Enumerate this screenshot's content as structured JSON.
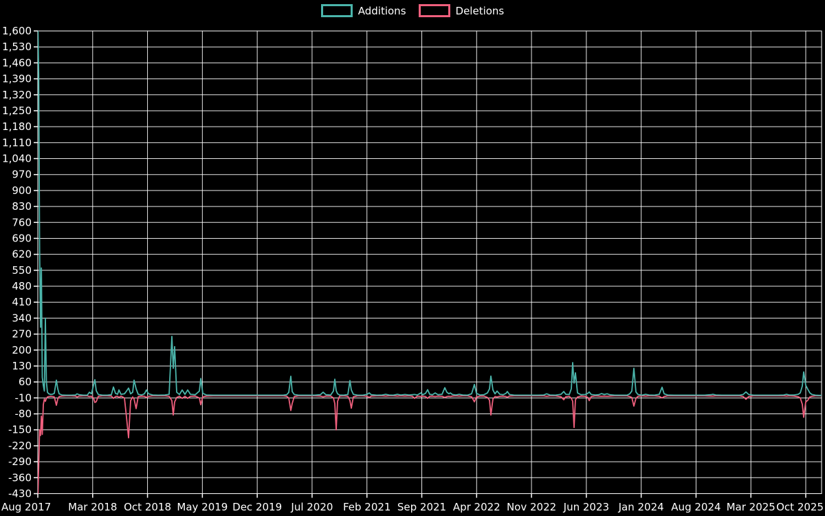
{
  "legend": {
    "additions_label": "Additions",
    "deletions_label": "Deletions"
  },
  "colors": {
    "additions": "#4bb5ab",
    "deletions": "#ef5f7d",
    "grid": "#ffffff",
    "background": "#000000",
    "text": "#ffffff"
  },
  "chart_data": {
    "type": "line",
    "title": "",
    "xlabel": "",
    "ylabel": "",
    "grid": "on",
    "legend_position": "top-center",
    "x_domain": [
      "Aug 2017",
      "Oct 2025"
    ],
    "x_tick_labels": [
      "Aug 2017",
      "Mar 2018",
      "Oct 2018",
      "May 2019",
      "Dec 2019",
      "Jul 2020",
      "Feb 2021",
      "Sep 2021",
      "Apr 2022",
      "Nov 2022",
      "Jun 2023",
      "Jan 2024",
      "Aug 2024",
      "Mar 2025",
      "Oct 2025"
    ],
    "y_tick_labels": [
      "1,600",
      "1,530",
      "1,460",
      "1,390",
      "1,320",
      "1,250",
      "1,180",
      "1,110",
      "1,040",
      "970",
      "900",
      "830",
      "760",
      "690",
      "620",
      "550",
      "480",
      "410",
      "340",
      "270",
      "200",
      "130",
      "60",
      "-10",
      "-80",
      "-150",
      "-220",
      "-290",
      "-360",
      "-430"
    ],
    "ylim": [
      -430,
      1600
    ],
    "y_step": 70,
    "series_names": [
      "Additions",
      "Deletions"
    ],
    "points_format": "[x_pixel_along_time_axis(55=Aug 2017 .. 1195=end), additions(+), deletions(-)]; flat ~0 between listed anchors",
    "points": [
      [
        55,
        1650,
        -460
      ],
      [
        56.3,
        1410,
        -310
      ],
      [
        57.6,
        640,
        -150
      ],
      [
        58.9,
        300,
        -175
      ],
      [
        60.2,
        560,
        -90
      ],
      [
        61.5,
        80,
        -170
      ],
      [
        63,
        45,
        -40
      ],
      [
        64.5,
        20,
        -15
      ],
      [
        66,
        340,
        -25
      ],
      [
        67.5,
        60,
        -12
      ],
      [
        69,
        15,
        -6
      ],
      [
        71,
        8,
        -4
      ],
      [
        74,
        5,
        -3
      ],
      [
        77,
        7,
        -4
      ],
      [
        79,
        10,
        -6
      ],
      [
        82,
        68,
        -42
      ],
      [
        84,
        30,
        -15
      ],
      [
        86,
        8,
        -4
      ],
      [
        90,
        3,
        -2
      ],
      [
        96,
        2,
        -1
      ],
      [
        104,
        2,
        -1
      ],
      [
        110,
        3,
        -2
      ],
      [
        112,
        8,
        -6
      ],
      [
        115,
        4,
        -2
      ],
      [
        121,
        2,
        -1
      ],
      [
        127,
        2,
        -1
      ],
      [
        130,
        15,
        -4
      ],
      [
        133,
        8,
        -3
      ],
      [
        136,
        45,
        -10
      ],
      [
        138,
        70,
        -30
      ],
      [
        140,
        22,
        -26
      ],
      [
        143,
        5,
        -3
      ],
      [
        149,
        2,
        -1
      ],
      [
        156,
        2,
        -1
      ],
      [
        162,
        4,
        -2
      ],
      [
        165,
        38,
        -12
      ],
      [
        168,
        10,
        -4
      ],
      [
        171,
        6,
        -3
      ],
      [
        173,
        25,
        -8
      ],
      [
        176,
        6,
        -2
      ],
      [
        181,
        8,
        -10
      ],
      [
        184,
        20,
        -95
      ],
      [
        187,
        33,
        -185
      ],
      [
        190,
        8,
        -22
      ],
      [
        193,
        15,
        -6
      ],
      [
        195,
        68,
        -15
      ],
      [
        198,
        30,
        -57
      ],
      [
        201,
        6,
        -4
      ],
      [
        206,
        3,
        -2
      ],
      [
        210,
        8,
        -3
      ],
      [
        213,
        25,
        -8
      ],
      [
        216,
        8,
        -3
      ],
      [
        222,
        3,
        -1
      ],
      [
        230,
        2,
        -1
      ],
      [
        240,
        3,
        -1
      ],
      [
        246,
        6,
        -3
      ],
      [
        250,
        260,
        -22
      ],
      [
        252,
        120,
        -85
      ],
      [
        254,
        215,
        -28
      ],
      [
        257,
        15,
        -8
      ],
      [
        261,
        5,
        -3
      ],
      [
        265,
        25,
        -12
      ],
      [
        269,
        6,
        -3
      ],
      [
        273,
        25,
        -12
      ],
      [
        277,
        6,
        -3
      ],
      [
        284,
        4,
        -2
      ],
      [
        290,
        20,
        -10
      ],
      [
        292,
        75,
        -40
      ],
      [
        295,
        10,
        -5
      ],
      [
        300,
        3,
        -2
      ],
      [
        310,
        2,
        -1
      ],
      [
        325,
        2,
        -1
      ],
      [
        340,
        2,
        -1
      ],
      [
        355,
        2,
        -1
      ],
      [
        370,
        2,
        -1
      ],
      [
        385,
        2,
        -1
      ],
      [
        400,
        2,
        -1
      ],
      [
        412,
        2,
        -1
      ],
      [
        417,
        4,
        -3
      ],
      [
        420,
        14,
        -10
      ],
      [
        423,
        85,
        -65
      ],
      [
        425,
        18,
        -35
      ],
      [
        428,
        5,
        -4
      ],
      [
        434,
        2,
        -1
      ],
      [
        445,
        2,
        -1
      ],
      [
        458,
        2,
        -1
      ],
      [
        466,
        4,
        -2
      ],
      [
        470,
        15,
        -5
      ],
      [
        474,
        4,
        -2
      ],
      [
        481,
        3,
        -2
      ],
      [
        485,
        20,
        -10
      ],
      [
        487,
        72,
        -35
      ],
      [
        489,
        22,
        -150
      ],
      [
        491,
        8,
        -25
      ],
      [
        494,
        3,
        -2
      ],
      [
        500,
        2,
        -1
      ],
      [
        506,
        5,
        -3
      ],
      [
        509,
        66,
        -22
      ],
      [
        511,
        25,
        -55
      ],
      [
        514,
        6,
        -5
      ],
      [
        520,
        2,
        -1
      ],
      [
        528,
        2,
        -1
      ],
      [
        534,
        6,
        -3
      ],
      [
        537,
        12,
        -8
      ],
      [
        540,
        4,
        -2
      ],
      [
        548,
        2,
        -1
      ],
      [
        556,
        3,
        -1
      ],
      [
        561,
        6,
        -2
      ],
      [
        566,
        3,
        -1
      ],
      [
        572,
        2,
        -1
      ],
      [
        578,
        6,
        -2
      ],
      [
        583,
        3,
        -1
      ],
      [
        589,
        5,
        -2
      ],
      [
        595,
        3,
        -1
      ],
      [
        600,
        4,
        -3
      ],
      [
        603,
        5,
        -12
      ],
      [
        607,
        3,
        -2
      ],
      [
        610,
        8,
        -3
      ],
      [
        612,
        12,
        -4
      ],
      [
        615,
        4,
        -2
      ],
      [
        619,
        10,
        -4
      ],
      [
        622,
        26,
        -12
      ],
      [
        625,
        6,
        -3
      ],
      [
        629,
        4,
        -2
      ],
      [
        633,
        12,
        -4
      ],
      [
        637,
        4,
        -2
      ],
      [
        643,
        6,
        -3
      ],
      [
        647,
        35,
        -8
      ],
      [
        650,
        15,
        -4
      ],
      [
        653,
        8,
        -3
      ],
      [
        655,
        12,
        -4
      ],
      [
        658,
        5,
        -2
      ],
      [
        663,
        3,
        -1
      ],
      [
        668,
        6,
        -2
      ],
      [
        673,
        3,
        -1
      ],
      [
        680,
        2,
        -1
      ],
      [
        686,
        8,
        -5
      ],
      [
        690,
        49,
        -27
      ],
      [
        693,
        10,
        -6
      ],
      [
        698,
        3,
        -2
      ],
      [
        704,
        4,
        -2
      ],
      [
        709,
        12,
        -8
      ],
      [
        712,
        30,
        -20
      ],
      [
        714,
        86,
        -85
      ],
      [
        717,
        25,
        -15
      ],
      [
        720,
        8,
        -4
      ],
      [
        723,
        20,
        -6
      ],
      [
        727,
        6,
        -3
      ],
      [
        732,
        4,
        -2
      ],
      [
        736,
        10,
        -4
      ],
      [
        738,
        18,
        -7
      ],
      [
        741,
        5,
        -2
      ],
      [
        748,
        2,
        -1
      ],
      [
        758,
        2,
        -1
      ],
      [
        770,
        2,
        -1
      ],
      [
        782,
        2,
        -1
      ],
      [
        791,
        3,
        -1
      ],
      [
        795,
        8,
        -3
      ],
      [
        800,
        3,
        -1
      ],
      [
        808,
        2,
        -1
      ],
      [
        816,
        6,
        -5
      ],
      [
        820,
        18,
        -18
      ],
      [
        823,
        6,
        -5
      ],
      [
        828,
        5,
        -3
      ],
      [
        831,
        30,
        -12
      ],
      [
        833,
        145,
        -25
      ],
      [
        835,
        55,
        -140
      ],
      [
        837,
        100,
        -18
      ],
      [
        840,
        12,
        -6
      ],
      [
        845,
        4,
        -2
      ],
      [
        851,
        5,
        -3
      ],
      [
        855,
        10,
        -8
      ],
      [
        857,
        16,
        -22
      ],
      [
        860,
        5,
        -4
      ],
      [
        866,
        3,
        -1
      ],
      [
        871,
        4,
        -2
      ],
      [
        875,
        9,
        -3
      ],
      [
        879,
        5,
        -2
      ],
      [
        883,
        8,
        -3
      ],
      [
        887,
        4,
        -2
      ],
      [
        894,
        2,
        -1
      ],
      [
        903,
        2,
        -1
      ],
      [
        912,
        2,
        -1
      ],
      [
        916,
        8,
        -4
      ],
      [
        919,
        20,
        -8
      ],
      [
        922,
        120,
        -46
      ],
      [
        925,
        16,
        -12
      ],
      [
        928,
        5,
        -3
      ],
      [
        934,
        2,
        -1
      ],
      [
        939,
        6,
        -2
      ],
      [
        944,
        3,
        -1
      ],
      [
        952,
        2,
        -1
      ],
      [
        959,
        6,
        -3
      ],
      [
        963,
        37,
        -10
      ],
      [
        966,
        8,
        -4
      ],
      [
        971,
        3,
        -1
      ],
      [
        980,
        2,
        -1
      ],
      [
        995,
        2,
        -1
      ],
      [
        1010,
        2,
        -1
      ],
      [
        1025,
        2,
        -1
      ],
      [
        1034,
        4,
        -2
      ],
      [
        1037,
        6,
        -2
      ],
      [
        1041,
        3,
        -1
      ],
      [
        1050,
        2,
        -1
      ],
      [
        1063,
        2,
        -1
      ],
      [
        1076,
        2,
        -1
      ],
      [
        1081,
        5,
        -4
      ],
      [
        1085,
        16,
        -16
      ],
      [
        1089,
        5,
        -4
      ],
      [
        1096,
        2,
        -1
      ],
      [
        1108,
        2,
        -1
      ],
      [
        1120,
        2,
        -1
      ],
      [
        1132,
        2,
        -1
      ],
      [
        1140,
        3,
        -1
      ],
      [
        1144,
        6,
        -2
      ],
      [
        1148,
        3,
        -1
      ],
      [
        1155,
        3,
        -2
      ],
      [
        1161,
        6,
        -5
      ],
      [
        1164,
        12,
        -10
      ],
      [
        1167,
        42,
        -38
      ],
      [
        1169,
        104,
        -95
      ],
      [
        1172,
        45,
        -28
      ],
      [
        1175,
        28,
        -20
      ],
      [
        1178,
        12,
        -6
      ],
      [
        1181,
        5,
        -3
      ],
      [
        1186,
        2,
        -1
      ],
      [
        1191,
        1,
        -1
      ],
      [
        1195,
        1,
        -1
      ]
    ]
  }
}
